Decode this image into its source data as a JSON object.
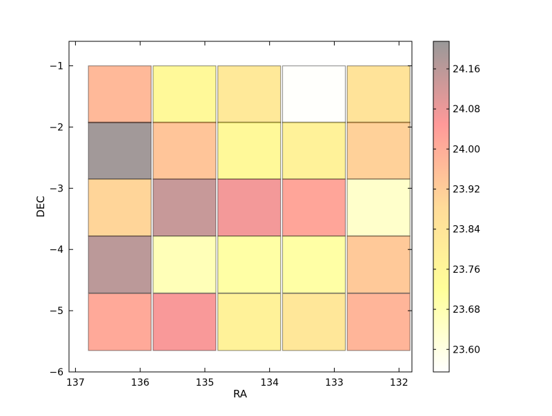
{
  "chart_data": {
    "type": "heatmap",
    "title": "",
    "xlabel": "RA",
    "ylabel": "DEC",
    "xlim": [
      137.1,
      131.8
    ],
    "ylim": [
      -6,
      -0.6
    ],
    "xticks": [
      137,
      136,
      135,
      134,
      133,
      132
    ],
    "yticks": [
      -1,
      -2,
      -3,
      -4,
      -5,
      -6
    ],
    "xtick_labels": [
      "137",
      "136",
      "135",
      "134",
      "133",
      "132"
    ],
    "ytick_labels": [
      "−1",
      "−2",
      "−3",
      "−4",
      "−5",
      "−6"
    ],
    "cell_width_ra": 0.97,
    "cell_height_dec": 0.93,
    "columns_ra_left_edge": [
      136.8,
      135.8,
      134.8,
      133.8,
      132.8
    ],
    "rows_dec_top_edge": [
      -1.0,
      -1.92,
      -2.85,
      -3.78,
      -4.72
    ],
    "values": [
      [
        23.97,
        23.75,
        23.82,
        23.56,
        23.85
      ],
      [
        24.2,
        23.94,
        23.75,
        23.78,
        23.91
      ],
      [
        23.9,
        24.14,
        24.07,
        24.02,
        23.64
      ],
      [
        24.16,
        23.67,
        23.7,
        23.7,
        23.93
      ],
      [
        24.01,
        24.06,
        23.78,
        23.83,
        23.98
      ]
    ],
    "colorbar": {
      "min": 23.555,
      "max": 24.215,
      "ticks": [
        23.6,
        23.68,
        23.76,
        23.84,
        23.92,
        24.0,
        24.08,
        24.16
      ],
      "tick_labels": [
        "23.60",
        "23.68",
        "23.76",
        "23.84",
        "23.92",
        "24.00",
        "24.08",
        "24.16"
      ],
      "colormap_stops": [
        "#ffffff",
        "#ffff00",
        "#ffa500",
        "#ff0000",
        "#000000"
      ],
      "cell_alpha": 0.4
    }
  }
}
